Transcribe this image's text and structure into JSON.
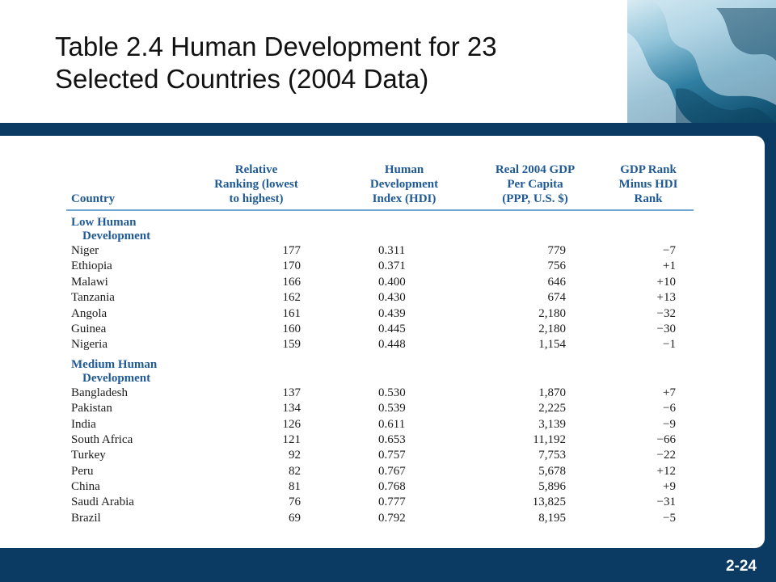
{
  "slide": {
    "title_line1": "Table 2.4 Human Development for 23",
    "title_line2": "Selected Countries (2004 Data)",
    "number": "2-24"
  },
  "colors": {
    "bar": "#0b3a63",
    "header_text": "#1f5a96",
    "rule": "#6fa5d0"
  },
  "table": {
    "headers": {
      "country": "Country",
      "rank": [
        "Relative",
        "Ranking (lowest",
        "to highest)"
      ],
      "hdi": [
        "Human",
        "Development",
        "Index (HDI)"
      ],
      "gdp": [
        "Real 2004 GDP",
        "Per Capita",
        "(PPP, U.S. $)"
      ],
      "diff": [
        "GDP Rank",
        "Minus HDI",
        "Rank"
      ]
    },
    "groups": [
      {
        "label_line1": "Low Human",
        "label_line2": "Development",
        "rows": [
          {
            "country": "Niger",
            "rank": "177",
            "hdi": "0.311",
            "gdp": "779",
            "diff": "−7"
          },
          {
            "country": "Ethiopia",
            "rank": "170",
            "hdi": "0.371",
            "gdp": "756",
            "diff": "+1"
          },
          {
            "country": "Malawi",
            "rank": "166",
            "hdi": "0.400",
            "gdp": "646",
            "diff": "+10"
          },
          {
            "country": "Tanzania",
            "rank": "162",
            "hdi": "0.430",
            "gdp": "674",
            "diff": "+13"
          },
          {
            "country": "Angola",
            "rank": "161",
            "hdi": "0.439",
            "gdp": "2,180",
            "diff": "−32"
          },
          {
            "country": "Guinea",
            "rank": "160",
            "hdi": "0.445",
            "gdp": "2,180",
            "diff": "−30"
          },
          {
            "country": "Nigeria",
            "rank": "159",
            "hdi": "0.448",
            "gdp": "1,154",
            "diff": "−1"
          }
        ]
      },
      {
        "label_line1": "Medium Human",
        "label_line2": "Development",
        "rows": [
          {
            "country": "Bangladesh",
            "rank": "137",
            "hdi": "0.530",
            "gdp": "1,870",
            "diff": "+7"
          },
          {
            "country": "Pakistan",
            "rank": "134",
            "hdi": "0.539",
            "gdp": "2,225",
            "diff": "−6"
          },
          {
            "country": "India",
            "rank": "126",
            "hdi": "0.611",
            "gdp": "3,139",
            "diff": "−9"
          },
          {
            "country": "South Africa",
            "rank": "121",
            "hdi": "0.653",
            "gdp": "11,192",
            "diff": "−66"
          },
          {
            "country": "Turkey",
            "rank": "92",
            "hdi": "0.757",
            "gdp": "7,753",
            "diff": "−22"
          },
          {
            "country": "Peru",
            "rank": "82",
            "hdi": "0.767",
            "gdp": "5,678",
            "diff": "+12"
          },
          {
            "country": "China",
            "rank": "81",
            "hdi": "0.768",
            "gdp": "5,896",
            "diff": "+9"
          },
          {
            "country": "Saudi Arabia",
            "rank": "76",
            "hdi": "0.777",
            "gdp": "13,825",
            "diff": "−31"
          },
          {
            "country": "Brazil",
            "rank": "69",
            "hdi": "0.792",
            "gdp": "8,195",
            "diff": "−5"
          }
        ]
      }
    ]
  }
}
